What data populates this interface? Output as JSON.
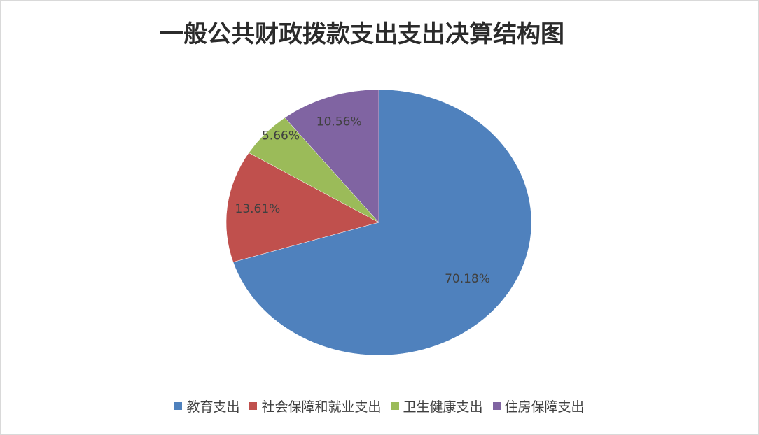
{
  "chart_data": {
    "type": "pie",
    "title": "一般公共财政拨款支出支出决算结构图",
    "categories": [
      "教育支出",
      "社会保障和就业支出",
      "卫生健康支出",
      "住房保障支出"
    ],
    "values": [
      70.18,
      13.61,
      5.66,
      10.56
    ],
    "value_labels": [
      "70.18%",
      "13.61%",
      "5.66%",
      "10.56%"
    ],
    "colors": [
      "#4f81bd",
      "#c0504d",
      "#9bbb59",
      "#8064a2"
    ],
    "legend": "bottom"
  }
}
